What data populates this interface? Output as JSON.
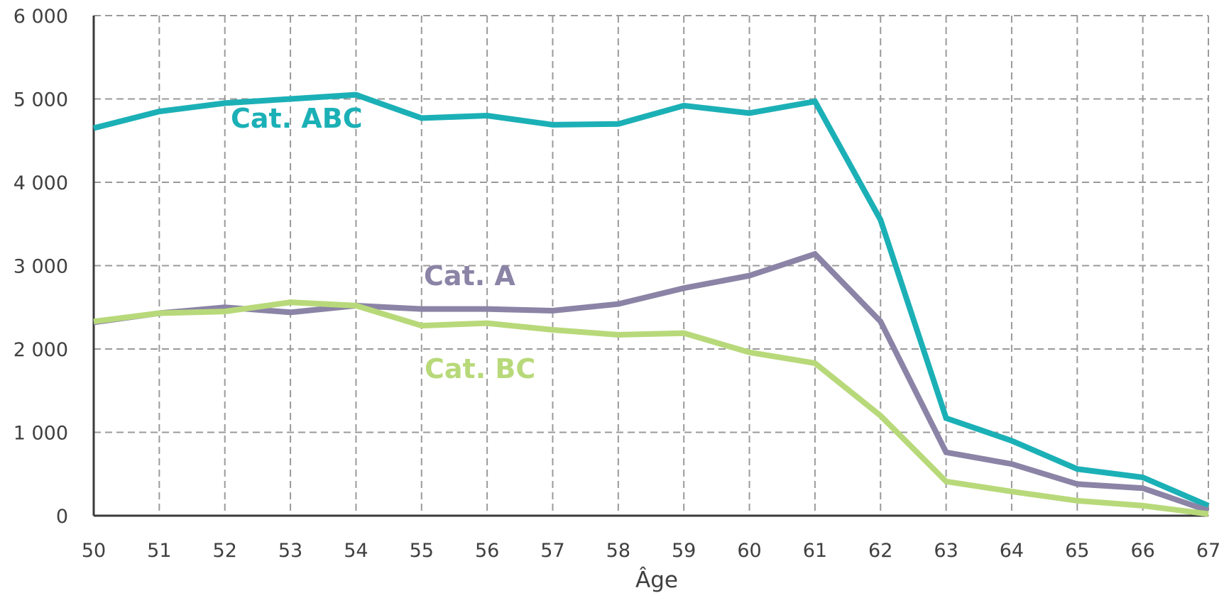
{
  "chart_data": {
    "type": "line",
    "xlabel": "Âge",
    "ylabel": "",
    "x": [
      50,
      51,
      52,
      53,
      54,
      55,
      56,
      57,
      58,
      59,
      60,
      61,
      62,
      63,
      64,
      65,
      66,
      67
    ],
    "xlim": [
      50,
      67
    ],
    "ylim": [
      0,
      6000
    ],
    "y_ticks": [
      0,
      1000,
      2000,
      3000,
      4000,
      5000,
      6000
    ],
    "y_tick_labels": [
      "0",
      "1 000",
      "2 000",
      "3 000",
      "4 000",
      "5 000",
      "6 000"
    ],
    "grid": true,
    "legend": "inline labels",
    "series": [
      {
        "name": "Cat. ABC",
        "color": "#1bb0b6",
        "values": [
          4650,
          4850,
          4950,
          5000,
          5050,
          4770,
          4800,
          4690,
          4700,
          4920,
          4830,
          4970,
          3550,
          1170,
          900,
          560,
          460,
          120
        ]
      },
      {
        "name": "Cat. A",
        "color": "#8b84a6",
        "values": [
          2320,
          2430,
          2500,
          2440,
          2520,
          2480,
          2480,
          2460,
          2540,
          2730,
          2880,
          3140,
          2330,
          760,
          620,
          380,
          330,
          60
        ]
      },
      {
        "name": "Cat. BC",
        "color": "#b8d97a",
        "values": [
          2330,
          2430,
          2450,
          2560,
          2520,
          2280,
          2310,
          2230,
          2170,
          2190,
          1960,
          1830,
          1200,
          410,
          290,
          180,
          120,
          20
        ]
      }
    ]
  }
}
